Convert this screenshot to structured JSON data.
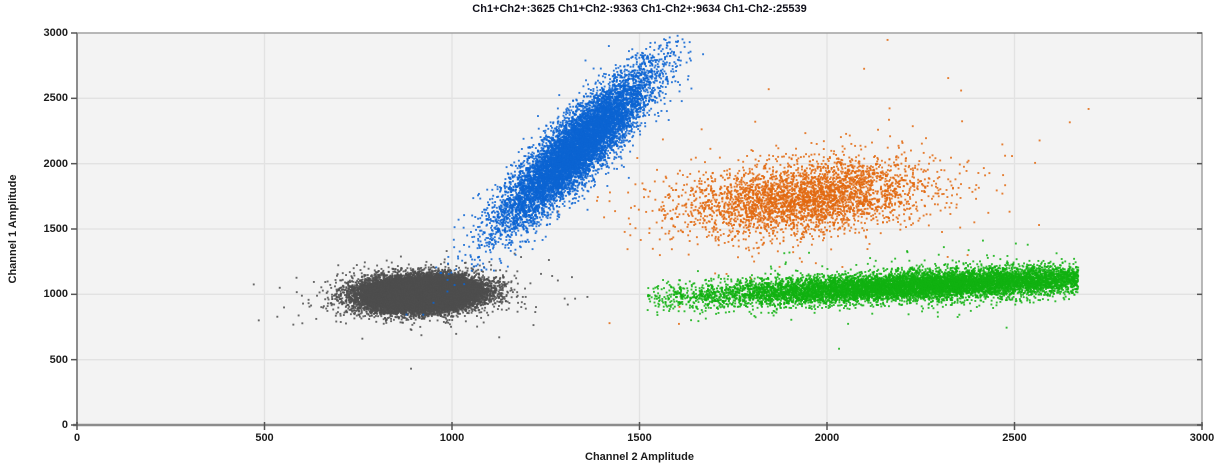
{
  "chart_data": {
    "type": "scatter",
    "title": "Ch1+Ch2+:3625 Ch1+Ch2-:9363 Ch1-Ch2+:9634 Ch1-Ch2-:25539",
    "xlabel": "Channel 2 Amplitude",
    "ylabel": "Channel 1 Amplitude",
    "xlim": [
      0,
      3000
    ],
    "ylim": [
      0,
      3000
    ],
    "xticks": [
      0,
      500,
      1000,
      1500,
      2000,
      2500,
      3000
    ],
    "yticks": [
      0,
      500,
      1000,
      1500,
      2000,
      2500,
      3000
    ],
    "grid": true,
    "legend": "none",
    "colors": {
      "plot_bg": "#f3f3f3",
      "grid": "#e2e2e2",
      "border": "#9b9b9b",
      "axis": "#8c8c8c",
      "tick": "#555555",
      "text": "#1c1c1c"
    },
    "populations": [
      {
        "label": "Ch1+Ch2+",
        "count": 3625
      },
      {
        "label": "Ch1+Ch2-",
        "count": 9363
      },
      {
        "label": "Ch1-Ch2+",
        "count": 9634
      },
      {
        "label": "Ch1-Ch2-",
        "count": 25539
      }
    ],
    "clusters": [
      {
        "name": "Ch1-Ch2-",
        "count": 25539,
        "color": "#4d4d4d",
        "model": "gaussian",
        "center": [
          915,
          1005
        ],
        "sigma": [
          75,
          62
        ],
        "rho": 0.1,
        "halo_frac": 0.012,
        "halo_scale": [
          2.2,
          2.2
        ]
      },
      {
        "name": "Ch1+Ch2+",
        "count": 3625,
        "color": "#e2690f",
        "model": "gaussian",
        "center": [
          1945,
          1745
        ],
        "sigma": [
          165,
          145
        ],
        "rho": 0.28,
        "halo_frac": 0.03,
        "halo_scale": [
          1.6,
          2.8
        ]
      },
      {
        "name": "Ch1+Ch2-",
        "count": 9363,
        "color": "#0c64d2",
        "model": "gaussian",
        "center": [
          1330,
          2110
        ],
        "sigma": [
          100,
          295
        ],
        "rho": 0.88,
        "halo_frac": 0.012,
        "halo_scale": [
          1.6,
          1.6
        ]
      },
      {
        "name": "Ch1-Ch2+",
        "count": 9634,
        "color": "#11b211",
        "model": "band",
        "center": [
          2280,
          1070
        ],
        "sigma": [
          320,
          55
        ],
        "slope": 0.13,
        "x_range": [
          1520,
          2670
        ],
        "halo_frac": 0.012,
        "halo_scale": [
          1.5,
          2.5
        ]
      }
    ]
  }
}
